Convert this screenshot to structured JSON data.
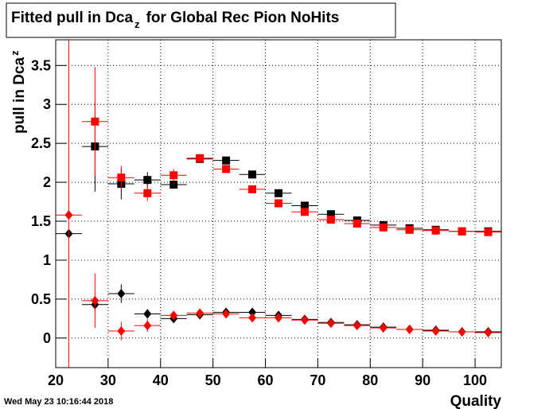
{
  "chart_data": {
    "type": "errorbar",
    "title": [
      "Fitted pull in Dca",
      "z",
      "for Global Rec Pion NoHits"
    ],
    "ylabel": [
      "pull in Dca",
      "z"
    ],
    "xlabel": "Quality",
    "timestamp": "Wed May 23 10:16:44 2018",
    "xlim": [
      20,
      105
    ],
    "ylim": [
      -0.38,
      3.83
    ],
    "xticks": [
      20,
      30,
      40,
      50,
      60,
      70,
      80,
      90,
      100
    ],
    "yticks": [
      0,
      0.5,
      1,
      1.5,
      2,
      2.5,
      3,
      3.5
    ],
    "grid": true,
    "x": [
      22.5,
      27.5,
      32.5,
      37.5,
      42.5,
      47.5,
      52.5,
      57.5,
      62.5,
      67.5,
      72.5,
      77.5,
      82.5,
      87.5,
      92.5,
      97.5,
      102.5
    ],
    "series": [
      {
        "color": "#000000",
        "marker": "square",
        "values": [
          null,
          2.46,
          1.98,
          2.03,
          1.97,
          2.3,
          2.28,
          2.1,
          1.86,
          1.7,
          1.59,
          1.51,
          1.45,
          1.41,
          1.39,
          1.37,
          1.37
        ],
        "errors": [
          null,
          0.58,
          0.2,
          0.1,
          0.05,
          0.04,
          0.03,
          0.03,
          0.02,
          0.02,
          0.02,
          0.02,
          0.02,
          0.02,
          0.02,
          0.02,
          0.02
        ]
      },
      {
        "color": "#ff0000",
        "marker": "square",
        "values": [
          null,
          2.78,
          2.06,
          1.86,
          2.09,
          2.31,
          2.17,
          1.91,
          1.73,
          1.62,
          1.52,
          1.47,
          1.42,
          1.39,
          1.38,
          1.37,
          1.36
        ],
        "errors": [
          null,
          0.7,
          0.15,
          0.1,
          0.08,
          0.05,
          0.03,
          0.03,
          0.02,
          0.02,
          0.02,
          0.02,
          0.02,
          0.02,
          0.02,
          0.02,
          0.02
        ]
      },
      {
        "color": "#000000",
        "marker": "diamond",
        "values": [
          1.34,
          0.43,
          0.57,
          0.31,
          0.25,
          0.3,
          0.33,
          0.33,
          0.29,
          0.24,
          0.2,
          0.17,
          0.14,
          0.11,
          0.1,
          0.08,
          0.08
        ],
        "errors": [
          0.05,
          0.1,
          0.12,
          0.06,
          0.04,
          0.03,
          0.02,
          0.02,
          0.02,
          0.02,
          0.01,
          0.01,
          0.01,
          0.01,
          0.01,
          0.01,
          0.01
        ]
      },
      {
        "color": "#ff0000",
        "marker": "diamond",
        "values": [
          1.58,
          0.48,
          0.09,
          0.16,
          0.29,
          0.32,
          0.31,
          0.26,
          0.26,
          0.23,
          0.19,
          0.16,
          0.13,
          0.11,
          0.09,
          0.08,
          0.07
        ],
        "errors": [
          2.5,
          0.35,
          0.12,
          0.08,
          0.05,
          0.03,
          0.02,
          0.02,
          0.02,
          0.02,
          0.01,
          0.01,
          0.01,
          0.01,
          0.01,
          0.01,
          0.01
        ]
      }
    ]
  }
}
